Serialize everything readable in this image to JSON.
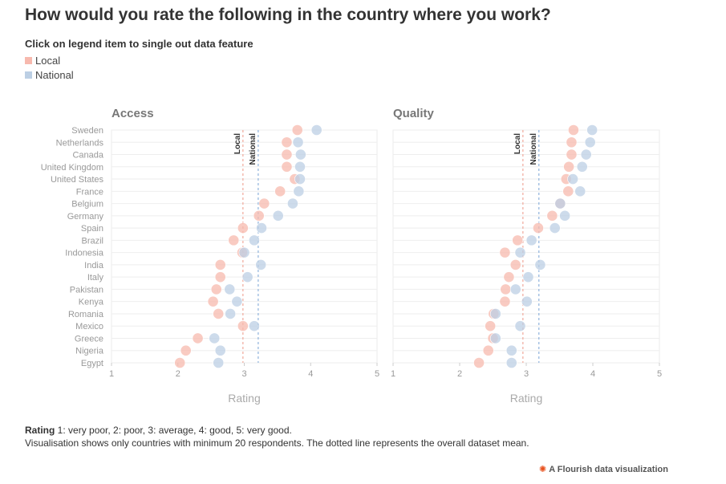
{
  "title": "How would you rate the following in the country where you work?",
  "legend": {
    "hint": "Click on legend item to single out data feature",
    "items": [
      {
        "label": "Local",
        "color": "#f7b9ae"
      },
      {
        "label": "National",
        "color": "#bccfe4"
      }
    ]
  },
  "footer": {
    "rating_bold": "Rating",
    "rating_text": " 1: very poor, 2: poor, 3: average, 4: good, 5: very good.",
    "note": "Visualisation shows only countries with minimum 20 respondents. The dotted line represents the overall dataset mean."
  },
  "credit": "A Flourish data visualization",
  "colors": {
    "local": "#f7b9ae",
    "national": "#bccfe4",
    "local_line": "#f0a99b",
    "national_line": "#8fb3dc"
  },
  "chart_data": [
    {
      "type": "scatter",
      "title": "Access",
      "xlabel": "Rating",
      "xlim": [
        1,
        5
      ],
      "xticks": [
        1,
        2,
        3,
        4,
        5
      ],
      "categories": [
        "Sweden",
        "Netherlands",
        "Canada",
        "United Kingdom",
        "United States",
        "France",
        "Belgium",
        "Germany",
        "Spain",
        "Brazil",
        "Indonesia",
        "India",
        "Italy",
        "Pakistan",
        "Kenya",
        "Romania",
        "Mexico",
        "Greece",
        "Nigeria",
        "Egypt"
      ],
      "series": [
        {
          "name": "Local",
          "values": [
            3.8,
            3.64,
            3.64,
            3.64,
            3.76,
            3.54,
            3.3,
            3.22,
            2.98,
            2.84,
            2.97,
            2.64,
            2.64,
            2.58,
            2.53,
            2.61,
            2.98,
            2.3,
            2.12,
            2.03
          ]
        },
        {
          "name": "National",
          "values": [
            4.09,
            3.81,
            3.85,
            3.84,
            3.84,
            3.82,
            3.73,
            3.51,
            3.26,
            3.15,
            3.0,
            3.25,
            3.05,
            2.78,
            2.89,
            2.79,
            3.15,
            2.55,
            2.64,
            2.61
          ]
        }
      ],
      "mean_lines": [
        {
          "label": "Local",
          "value": 2.98
        },
        {
          "label": "National",
          "value": 3.21
        }
      ]
    },
    {
      "type": "scatter",
      "title": "Quality",
      "xlabel": "Rating",
      "xlim": [
        1,
        5
      ],
      "xticks": [
        1,
        2,
        3,
        4,
        5
      ],
      "categories": [
        "Sweden",
        "Netherlands",
        "Canada",
        "United Kingdom",
        "United States",
        "France",
        "Belgium",
        "Germany",
        "Spain",
        "Brazil",
        "Indonesia",
        "India",
        "Italy",
        "Pakistan",
        "Kenya",
        "Romania",
        "Mexico",
        "Greece",
        "Nigeria",
        "Egypt"
      ],
      "series": [
        {
          "name": "Local",
          "values": [
            3.71,
            3.68,
            3.68,
            3.64,
            3.6,
            3.63,
            3.51,
            3.39,
            3.18,
            2.87,
            2.68,
            2.84,
            2.74,
            2.69,
            2.68,
            2.51,
            2.46,
            2.5,
            2.43,
            2.29
          ]
        },
        {
          "name": "National",
          "values": [
            3.99,
            3.96,
            3.9,
            3.84,
            3.7,
            3.81,
            3.51,
            3.58,
            3.43,
            3.08,
            2.91,
            3.21,
            3.03,
            2.84,
            3.01,
            2.54,
            2.91,
            2.54,
            2.78,
            2.78
          ]
        }
      ],
      "mean_lines": [
        {
          "label": "Local",
          "value": 2.95
        },
        {
          "label": "National",
          "value": 3.19
        }
      ]
    }
  ]
}
